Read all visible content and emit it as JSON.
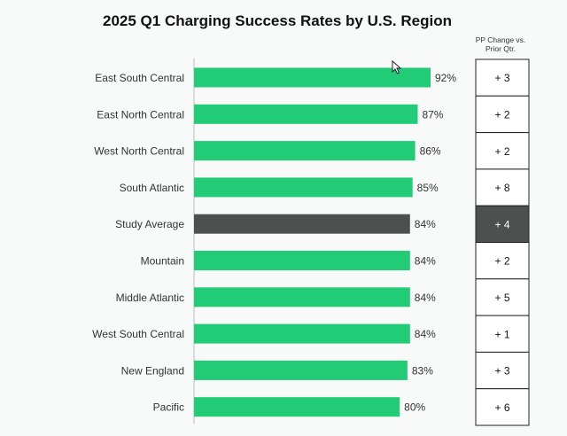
{
  "title": "2025 Q1 Charging Success Rates by U.S. Region",
  "pp_header": [
    "PP Change vs.",
    "Prior Qtr."
  ],
  "colors": {
    "bar": "#22cc77",
    "highlight_bar": "#4d504e",
    "highlight_box": "#4d504e",
    "axis": "#bbbbbb"
  },
  "chart_data": {
    "type": "bar",
    "orientation": "horizontal",
    "title": "2025 Q1 Charging Success Rates by U.S. Region",
    "categories": [
      "East South Central",
      "East North Central",
      "West North Central",
      "South Atlantic",
      "Study Average",
      "Mountain",
      "Middle Atlantic",
      "West South Central",
      "New England",
      "Pacific"
    ],
    "values": [
      92,
      87,
      86,
      85,
      84,
      84,
      84,
      84,
      83,
      80
    ],
    "value_labels": [
      "92%",
      "87%",
      "86%",
      "85%",
      "84%",
      "84%",
      "84%",
      "84%",
      "83%",
      "80%"
    ],
    "highlight_category": "Study Average",
    "pp_change_labels": [
      "+ 3",
      "+ 2",
      "+ 2",
      "+ 8",
      "+ 4",
      "+ 2",
      "+ 5",
      "+ 1",
      "+ 3",
      "+ 6"
    ],
    "grid": false
  }
}
